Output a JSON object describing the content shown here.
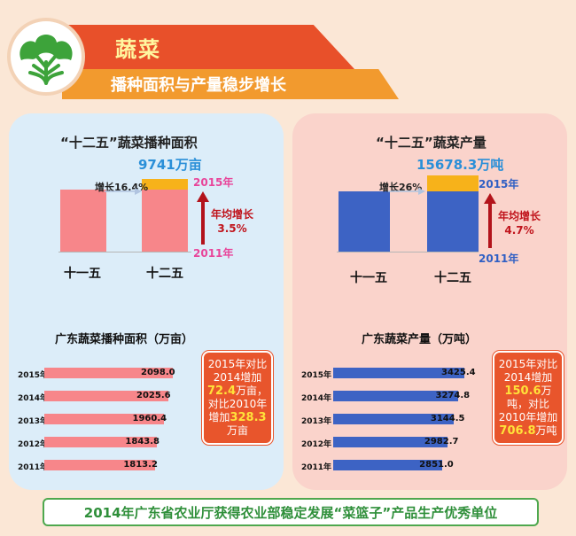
{
  "header": {
    "title": "蔬菜",
    "subtitle": "播种面积与产量稳步增长",
    "icon": "vegetable-icon"
  },
  "left_panel": {
    "title": "“十二五”蔬菜播种面积",
    "top_value": "9741万亩",
    "growth": "增长16.4%",
    "avg_label_line1": "年均增长",
    "avg_label_line2": "3.5%",
    "year_top": "2015年",
    "year_bottom": "2011年",
    "periods": [
      "十一五",
      "十二五"
    ],
    "sub_title": "广东蔬菜播种面积（万亩）",
    "note": {
      "t1": "2015年对比2014增加",
      "v1": "72.4",
      "t2": "万亩，对比2010年增加",
      "v2": "328.3",
      "t3": "万亩"
    }
  },
  "right_panel": {
    "title": "“十二五”蔬菜产量",
    "top_value": "15678.3万吨",
    "growth": "增长26%",
    "avg_label_line1": "年均增长",
    "avg_label_line2": "4.7%",
    "year_top": "2015年",
    "year_bottom": "2011年",
    "periods": [
      "十一五",
      "十二五"
    ],
    "sub_title": "广东蔬菜产量（万吨）",
    "note": {
      "t1": "2015年对比2014增加",
      "v1": "150.6",
      "t2": "万吨，对比2010年增加",
      "v2": "706.8",
      "t3": "万吨"
    }
  },
  "footer": {
    "text": "2014年广东省农业厅获得农业部稳定发展“菜篮子”产品生产优秀单位"
  },
  "colors": {
    "area_bar": "#f7868a",
    "output_bar": "#3d63c4",
    "increment": "#f7b21a",
    "arrow": "#b3131b"
  },
  "chart_data": [
    {
      "type": "bar",
      "title": "“十二五”蔬菜播种面积",
      "categories": [
        "十一五",
        "十二五"
      ],
      "values": [
        8368.4,
        9741
      ],
      "annotations": [
        "9741万亩",
        "增长16.4%",
        "年均增长 3.5%"
      ]
    },
    {
      "type": "bar",
      "title": "“十二五”蔬菜产量",
      "categories": [
        "十一五",
        "十二五"
      ],
      "values": [
        12443.1,
        15678.3
      ],
      "annotations": [
        "15678.3万吨",
        "增长26%",
        "年均增长 4.7%"
      ]
    },
    {
      "type": "bar",
      "orientation": "horizontal",
      "title": "广东蔬菜播种面积（万亩）",
      "categories": [
        "2015年",
        "2014年",
        "2013年",
        "2012年",
        "2011年"
      ],
      "values": [
        2098.0,
        2025.6,
        1960.4,
        1843.8,
        1813.2
      ],
      "value_labels": [
        "2098.0",
        "2025.6",
        "1960.4",
        "1843.8",
        "1813.2"
      ]
    },
    {
      "type": "bar",
      "orientation": "horizontal",
      "title": "广东蔬菜产量（万吨）",
      "categories": [
        "2015年",
        "2014年",
        "2013年",
        "2012年",
        "2011年"
      ],
      "values": [
        3425.4,
        3274.8,
        3144.5,
        2982.7,
        2851.0
      ],
      "value_labels": [
        "3425.4",
        "3274.8",
        "3144.5",
        "2982.7",
        "2851.0"
      ]
    }
  ]
}
